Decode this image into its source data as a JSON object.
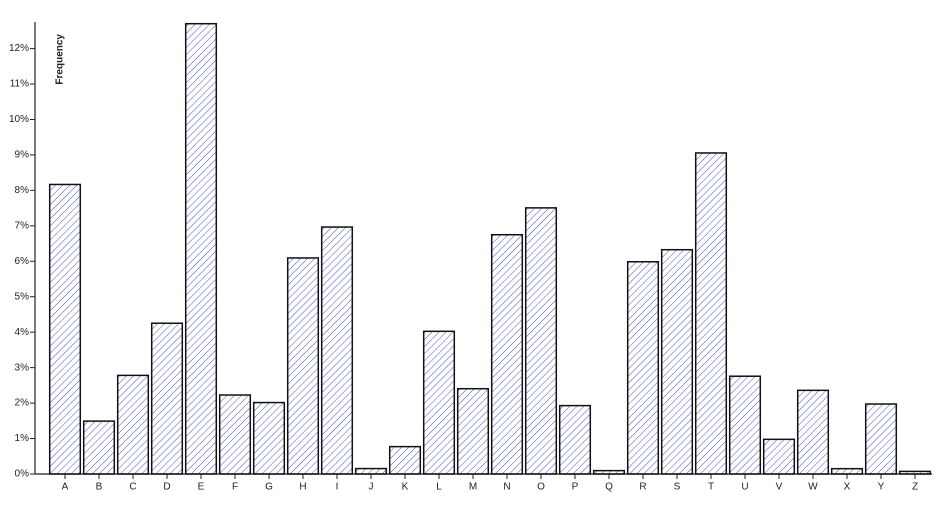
{
  "chart_data": {
    "type": "bar",
    "y_label": "Frequency",
    "categories": [
      "A",
      "B",
      "C",
      "D",
      "E",
      "F",
      "G",
      "H",
      "I",
      "J",
      "K",
      "L",
      "M",
      "N",
      "O",
      "P",
      "Q",
      "R",
      "S",
      "T",
      "U",
      "V",
      "W",
      "X",
      "Y",
      "Z"
    ],
    "values": [
      8.167,
      1.492,
      2.782,
      4.253,
      12.702,
      2.228,
      2.015,
      6.094,
      6.966,
      0.153,
      0.772,
      4.025,
      2.406,
      6.749,
      7.507,
      1.929,
      0.095,
      5.987,
      6.327,
      9.056,
      2.758,
      0.978,
      2.36,
      0.15,
      1.974,
      0.074
    ],
    "color": "#4a52c8",
    "ylim": [
      0,
      12.75
    ],
    "yticks": [
      {
        "value": 0,
        "label": "0%"
      },
      {
        "value": 1,
        "label": "1%"
      },
      {
        "value": 2,
        "label": "2%"
      },
      {
        "value": 3,
        "label": "3%"
      },
      {
        "value": 4,
        "label": "4%"
      },
      {
        "value": 5,
        "label": "5%"
      },
      {
        "value": 6,
        "label": "6%"
      },
      {
        "value": 7,
        "label": "7%"
      },
      {
        "value": 8,
        "label": "8%"
      },
      {
        "value": 9,
        "label": "9%"
      },
      {
        "value": 10,
        "label": "10%"
      },
      {
        "value": 11,
        "label": "11%"
      },
      {
        "value": 12,
        "label": "12%"
      }
    ],
    "grid": false
  }
}
